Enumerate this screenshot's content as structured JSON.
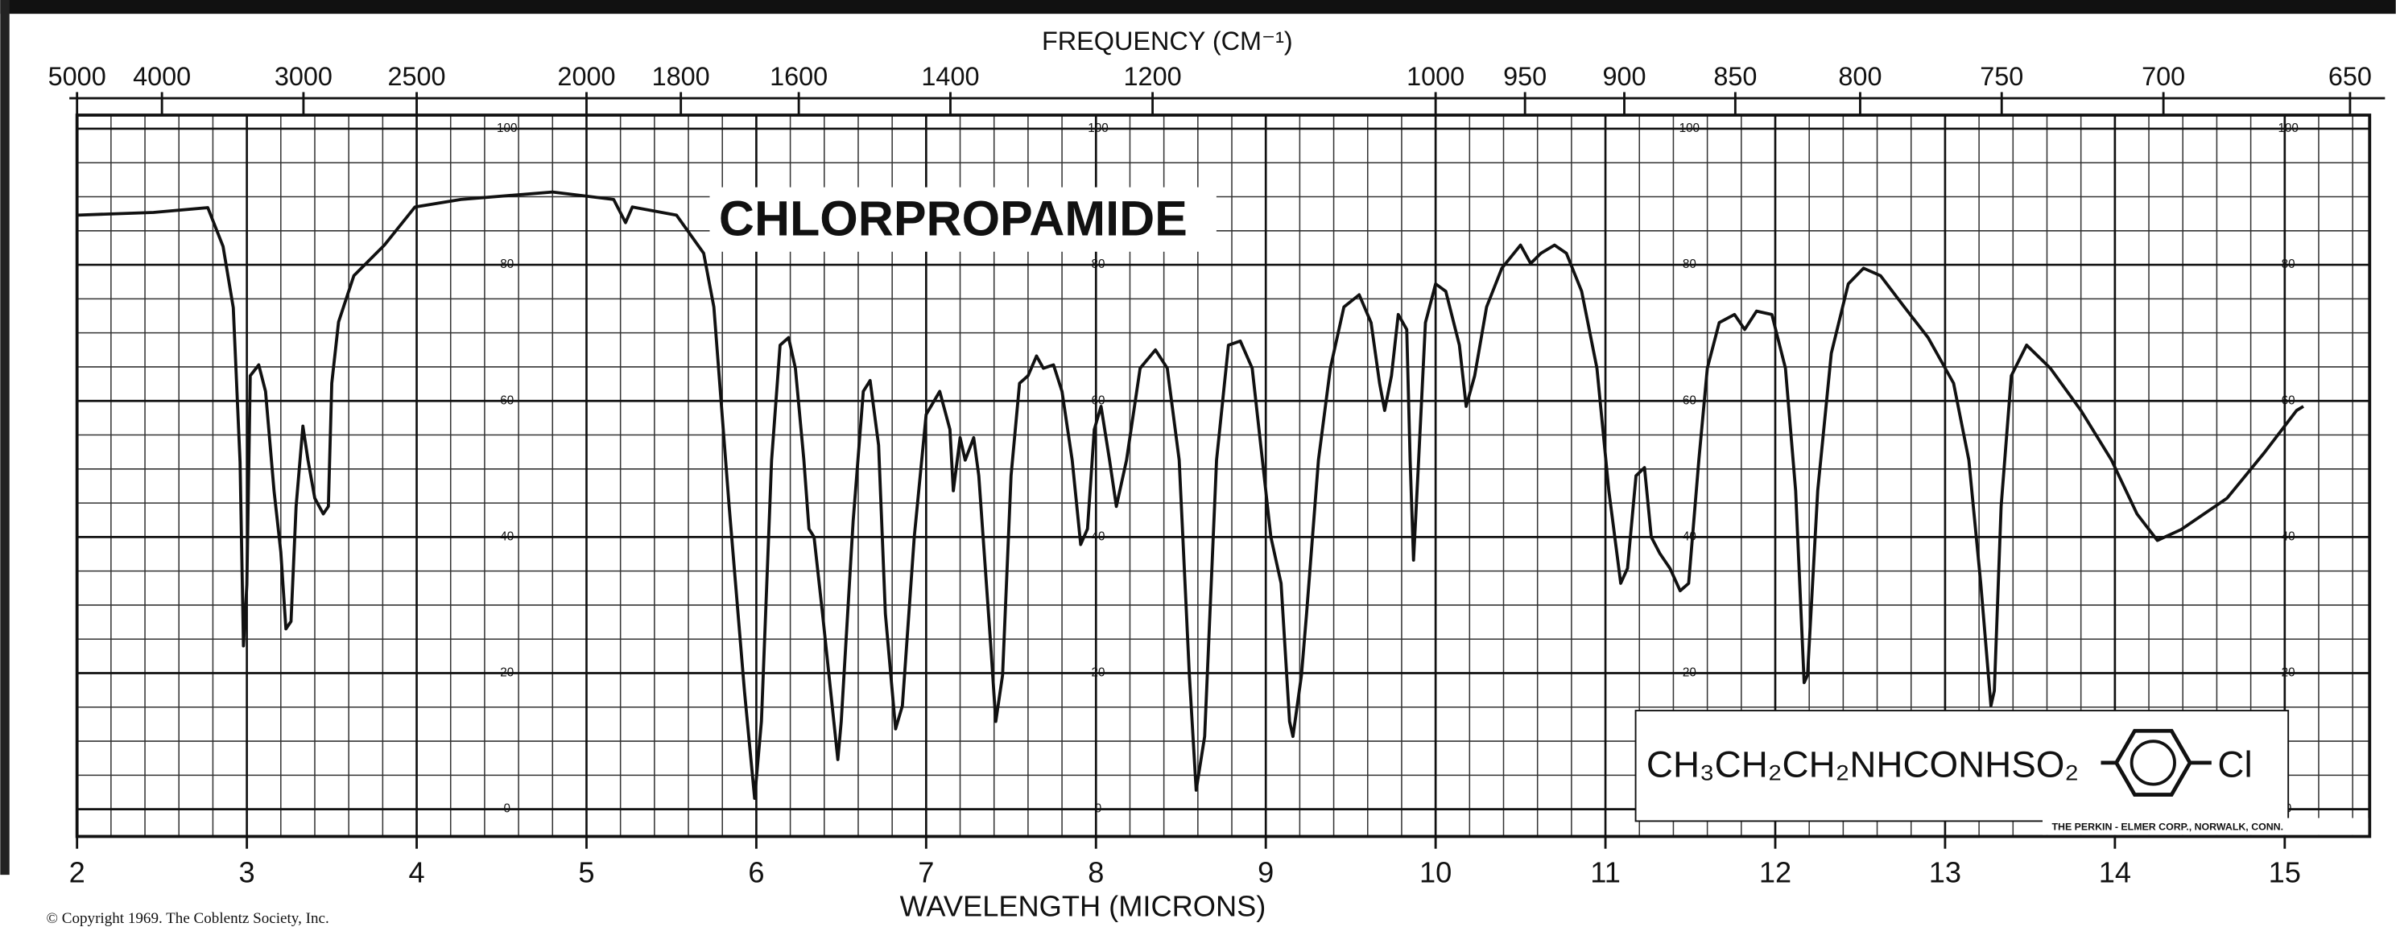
{
  "chart_data": {
    "type": "line",
    "title": "CHLORPROPAMIDE",
    "xlabel": "WAVELENGTH (MICRONS)",
    "x2label": "FREQUENCY (CM⁻¹)",
    "formula": "CH₃CH₂CH₂NHCONHSO₂",
    "substituent": "Cl",
    "credit": "THE PERKIN - ELMER CORP., NORWALK, CONN.",
    "copyright": "© Copyright 1969.  The Coblentz Society, Inc.",
    "color": "#111111",
    "grid": true,
    "xlim": [
      2,
      15.5
    ],
    "ylim": [
      -4,
      102
    ],
    "xticks": [
      2,
      3,
      4,
      5,
      6,
      7,
      8,
      9,
      10,
      11,
      12,
      13,
      14,
      15
    ],
    "xminorticks": [
      2.2,
      2.4,
      2.6,
      2.8,
      3.2,
      3.4,
      3.6,
      3.8,
      4.2,
      4.4,
      4.6,
      4.8,
      5.2,
      5.4,
      5.6,
      5.8,
      6.2,
      6.4,
      6.6,
      6.8,
      7.2,
      7.4,
      7.6,
      7.8,
      8.2,
      8.4,
      8.6,
      8.8,
      9.2,
      9.4,
      9.6,
      9.8,
      10.2,
      10.4,
      10.6,
      10.8,
      11.2,
      11.4,
      11.6,
      11.8,
      12.2,
      12.4,
      12.6,
      12.8,
      13.2,
      13.4,
      13.6,
      13.8,
      14.2,
      14.4,
      14.6,
      14.8,
      15.2,
      15.4
    ],
    "x2ticks": [
      5000,
      4000,
      3000,
      2500,
      2000,
      1800,
      1600,
      1400,
      1200,
      1000,
      950,
      900,
      850,
      800,
      750,
      700,
      650
    ],
    "yticks": [
      0,
      20,
      40,
      60,
      80,
      100
    ],
    "yminorticks": [
      5,
      10,
      15,
      25,
      30,
      35,
      45,
      50,
      55,
      65,
      70,
      75,
      85,
      90,
      95
    ],
    "x": [
      2.0,
      2.45,
      2.77,
      2.86,
      2.92,
      2.96,
      2.98,
      3.0,
      3.02,
      3.07,
      3.11,
      3.16,
      3.2,
      3.23,
      3.26,
      3.29,
      3.33,
      3.36,
      3.4,
      3.45,
      3.48,
      3.5,
      3.54,
      3.63,
      3.81,
      3.99,
      4.26,
      4.8,
      5.16,
      5.23,
      5.27,
      5.53,
      5.69,
      5.75,
      5.84,
      5.93,
      5.99,
      6.03,
      6.09,
      6.14,
      6.19,
      6.23,
      6.28,
      6.31,
      6.34,
      6.39,
      6.48,
      6.5,
      6.57,
      6.63,
      6.67,
      6.72,
      6.76,
      6.82,
      6.86,
      6.93,
      7.0,
      7.08,
      7.14,
      7.16,
      7.2,
      7.23,
      7.28,
      7.31,
      7.38,
      7.41,
      7.45,
      7.5,
      7.55,
      7.6,
      7.65,
      7.69,
      7.75,
      7.8,
      7.86,
      7.91,
      7.95,
      7.99,
      8.03,
      8.08,
      8.12,
      8.18,
      8.26,
      8.35,
      8.42,
      8.49,
      8.55,
      8.59,
      8.64,
      8.71,
      8.78,
      8.85,
      8.92,
      8.98,
      9.03,
      9.09,
      9.14,
      9.16,
      9.21,
      9.24,
      9.31,
      9.38,
      9.46,
      9.55,
      9.62,
      9.67,
      9.7,
      9.74,
      9.78,
      9.83,
      9.85,
      9.87,
      9.9,
      9.94,
      10.0,
      10.06,
      10.14,
      10.18,
      10.23,
      10.3,
      10.39,
      10.5,
      10.56,
      10.62,
      10.7,
      10.77,
      10.86,
      10.95,
      11.02,
      11.09,
      11.13,
      11.18,
      11.23,
      11.27,
      11.32,
      11.38,
      11.44,
      11.49,
      11.55,
      11.6,
      11.67,
      11.76,
      11.82,
      11.89,
      11.98,
      12.06,
      12.12,
      12.17,
      12.19,
      12.25,
      12.33,
      12.43,
      12.52,
      12.62,
      12.76,
      12.9,
      13.05,
      13.14,
      13.21,
      13.27,
      13.29,
      13.33,
      13.39,
      13.48,
      13.62,
      13.8,
      13.98,
      14.13,
      14.25,
      14.39,
      14.66,
      14.88,
      15.07,
      15.11
    ],
    "values": [
      87.3,
      87.7,
      88.4,
      82.7,
      73.7,
      51,
      24,
      33,
      63.7,
      65.3,
      61.4,
      46.8,
      37.8,
      26.5,
      27.6,
      44.5,
      56.3,
      51.3,
      45.7,
      43.4,
      44.5,
      62.6,
      71.6,
      78.4,
      82.9,
      88.5,
      89.6,
      90.7,
      89.6,
      86.2,
      88.5,
      87.3,
      81.7,
      73.8,
      44.5,
      17.4,
      1.6,
      12.9,
      51.3,
      68.2,
      69.3,
      64.8,
      51.3,
      41.2,
      40,
      28.7,
      7.3,
      12.9,
      42.3,
      61.4,
      63,
      53.5,
      28.7,
      11.8,
      15.2,
      40,
      58,
      61.4,
      55.8,
      46.8,
      54.6,
      51.3,
      54.6,
      49,
      24.2,
      12.9,
      19.7,
      49,
      62.6,
      63.7,
      66.6,
      64.8,
      65.3,
      61.4,
      51.3,
      38.9,
      41.2,
      55.8,
      59.2,
      51.3,
      44.5,
      51.3,
      64.8,
      67.5,
      64.8,
      51.3,
      19.7,
      2.8,
      10.7,
      51.3,
      68.2,
      68.8,
      64.8,
      51.3,
      40,
      33.2,
      12.9,
      10.7,
      19.7,
      28.7,
      51.3,
      64.8,
      73.8,
      75.6,
      71.5,
      62.6,
      58.6,
      63.7,
      72.7,
      70.5,
      51.3,
      36.6,
      51.3,
      71.5,
      77.2,
      76.1,
      68.2,
      59.2,
      63.7,
      73.8,
      79.5,
      82.9,
      80.2,
      81.7,
      82.9,
      81.7,
      76.1,
      64.8,
      46.8,
      33.2,
      35.4,
      49,
      50.2,
      40,
      37.6,
      35.4,
      32.1,
      33.2,
      51.3,
      64.8,
      71.5,
      72.7,
      70.5,
      73.2,
      72.7,
      64.8,
      46.8,
      18.6,
      19.7,
      46.8,
      67,
      77.2,
      79.5,
      78.4,
      73.8,
      69.3,
      62.6,
      51.3,
      33.2,
      15.2,
      17.4,
      44.5,
      63.7,
      68.2,
      64.8,
      58.6,
      51.3,
      43.4,
      39.5,
      41.1,
      45.7,
      52.4,
      58.6,
      59.2
    ]
  }
}
